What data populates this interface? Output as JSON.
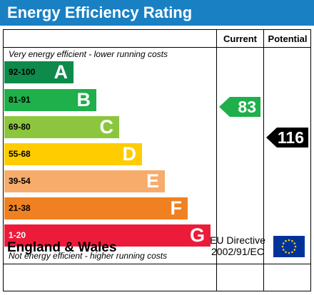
{
  "title": "Energy Efficiency Rating",
  "columns": {
    "current": "Current",
    "potential": "Potential"
  },
  "top_caption": "Very energy efficient - lower running costs",
  "bottom_caption": "Not energy efficient - higher running costs",
  "bands": [
    {
      "range": "92-100",
      "letter": "A",
      "color": "#0e8a4b",
      "range_color": "#000000"
    },
    {
      "range": "81-91",
      "letter": "B",
      "color": "#1faf4b",
      "range_color": "#000000"
    },
    {
      "range": "69-80",
      "letter": "C",
      "color": "#8cc63f",
      "range_color": "#000000"
    },
    {
      "range": "55-68",
      "letter": "D",
      "color": "#ffcc00",
      "range_color": "#000000"
    },
    {
      "range": "39-54",
      "letter": "E",
      "color": "#f7ac6b",
      "range_color": "#000000"
    },
    {
      "range": "21-38",
      "letter": "F",
      "color": "#f08122",
      "range_color": "#000000"
    },
    {
      "range": "1-20",
      "letter": "G",
      "color": "#ed1b3a",
      "range_color": "#ffffff"
    }
  ],
  "current": {
    "value": "83",
    "color": "#1faf4b"
  },
  "potential": {
    "value": "116",
    "color": "#000000"
  },
  "footer": {
    "region": "England & Wales",
    "directive_line1": "EU Directive",
    "directive_line2": "2002/91/EC",
    "flag_icon": "eu-flag-icon"
  }
}
